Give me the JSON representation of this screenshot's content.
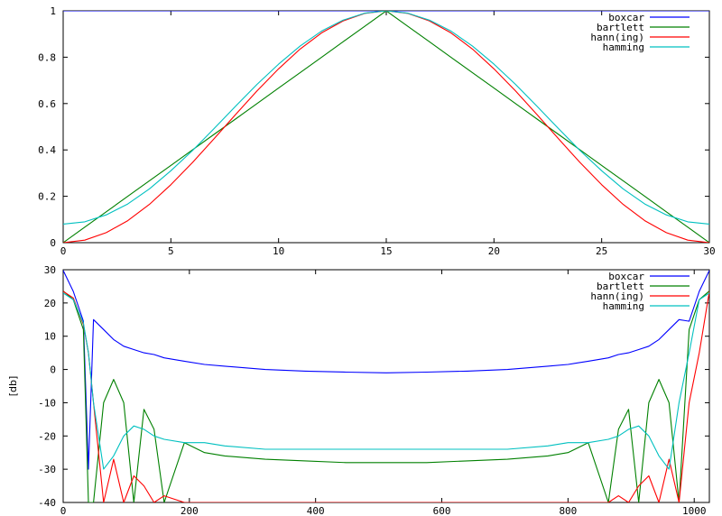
{
  "chart_data": [
    {
      "type": "line",
      "title": "",
      "xlabel": "",
      "ylabel": "",
      "xlim": [
        0,
        30
      ],
      "ylim": [
        0,
        1
      ],
      "xticks": [
        0,
        5,
        10,
        15,
        20,
        25,
        30
      ],
      "xtick_labels": [
        "0",
        "5",
        "10",
        "15",
        "20",
        "25",
        "30"
      ],
      "yticks": [
        0,
        0.2,
        0.4,
        0.6,
        0.8,
        1
      ],
      "ytick_labels": [
        "0",
        "0.2",
        "0.4",
        "0.6",
        "0.8",
        "1"
      ],
      "grid": false,
      "legend_position": "top-right",
      "x": [
        0,
        1,
        2,
        3,
        4,
        5,
        6,
        7,
        8,
        9,
        10,
        11,
        12,
        13,
        14,
        15,
        16,
        17,
        18,
        19,
        20,
        21,
        22,
        23,
        24,
        25,
        26,
        27,
        28,
        29,
        30
      ],
      "series": [
        {
          "name": "boxcar",
          "color": "#0000ff",
          "values": [
            1,
            1,
            1,
            1,
            1,
            1,
            1,
            1,
            1,
            1,
            1,
            1,
            1,
            1,
            1,
            1,
            1,
            1,
            1,
            1,
            1,
            1,
            1,
            1,
            1,
            1,
            1,
            1,
            1,
            1,
            1
          ]
        },
        {
          "name": "bartlett",
          "color": "#008000",
          "values": [
            0,
            0.067,
            0.133,
            0.2,
            0.267,
            0.333,
            0.4,
            0.467,
            0.533,
            0.6,
            0.667,
            0.733,
            0.8,
            0.867,
            0.933,
            1,
            0.933,
            0.867,
            0.8,
            0.733,
            0.667,
            0.6,
            0.533,
            0.467,
            0.4,
            0.333,
            0.267,
            0.2,
            0.133,
            0.067,
            0
          ]
        },
        {
          "name": "hann(ing)",
          "color": "#ff0000",
          "values": [
            0,
            0.011,
            0.043,
            0.095,
            0.165,
            0.25,
            0.345,
            0.448,
            0.552,
            0.655,
            0.75,
            0.835,
            0.905,
            0.957,
            0.989,
            1,
            0.989,
            0.957,
            0.905,
            0.835,
            0.75,
            0.655,
            0.552,
            0.448,
            0.345,
            0.25,
            0.165,
            0.095,
            0.043,
            0.011,
            0
          ]
        },
        {
          "name": "hamming",
          "color": "#00c0c0",
          "values": [
            0.08,
            0.09,
            0.12,
            0.167,
            0.232,
            0.31,
            0.397,
            0.492,
            0.588,
            0.683,
            0.77,
            0.848,
            0.913,
            0.96,
            0.99,
            1,
            0.99,
            0.96,
            0.913,
            0.848,
            0.77,
            0.683,
            0.588,
            0.492,
            0.397,
            0.31,
            0.232,
            0.167,
            0.12,
            0.09,
            0.08
          ]
        }
      ]
    },
    {
      "type": "line",
      "title": "",
      "xlabel": "",
      "ylabel": "[db]",
      "xlim": [
        0,
        1024
      ],
      "ylim": [
        -40,
        30
      ],
      "xticks": [
        0,
        200,
        400,
        600,
        800,
        1000
      ],
      "xtick_labels": [
        "0",
        "200",
        "400",
        "600",
        "800",
        "1000"
      ],
      "yticks": [
        -40,
        -30,
        -20,
        -10,
        0,
        10,
        20,
        30
      ],
      "ytick_labels": [
        "-40",
        "-30",
        "-20",
        "-10",
        "0",
        "10",
        "20",
        "30"
      ],
      "grid": false,
      "legend_position": "top-right",
      "x": [
        0,
        16,
        32,
        40,
        48,
        64,
        80,
        96,
        112,
        128,
        144,
        160,
        192,
        224,
        256,
        320,
        384,
        448,
        512,
        576,
        640,
        704,
        768,
        800,
        832,
        864,
        880,
        896,
        912,
        928,
        944,
        960,
        976,
        992,
        1008,
        1024
      ],
      "series": [
        {
          "name": "boxcar",
          "color": "#0000ff",
          "values": [
            29.8,
            23.5,
            14.5,
            -30,
            15,
            12,
            9,
            7,
            6,
            5,
            4.5,
            3.5,
            2.5,
            1.5,
            1,
            0,
            -0.5,
            -0.8,
            -1,
            -0.8,
            -0.5,
            0,
            1,
            1.5,
            2.5,
            3.5,
            4.5,
            5,
            6,
            7,
            9,
            12,
            15,
            14.5,
            23.5,
            29.8
          ]
        },
        {
          "name": "bartlett",
          "color": "#008000",
          "values": [
            23.6,
            21,
            12,
            -40,
            -40,
            -10,
            -3,
            -10,
            -40,
            -12,
            -18,
            -40,
            -22,
            -25,
            -26,
            -27,
            -27.5,
            -28,
            -28,
            -28,
            -27.5,
            -27,
            -26,
            -25,
            -22,
            -40,
            -18,
            -12,
            -40,
            -10,
            -3,
            -10,
            -40,
            12,
            21,
            23.6
          ]
        },
        {
          "name": "hann(ing)",
          "color": "#ff0000",
          "values": [
            23.5,
            21.5,
            13.5,
            5,
            -10,
            -40,
            -27,
            -40,
            -32,
            -35,
            -40,
            -38,
            -40,
            -40,
            -40,
            -40,
            -40,
            -40,
            -40,
            -40,
            -40,
            -40,
            -40,
            -40,
            -40,
            -40,
            -38,
            -40,
            -35,
            -32,
            -40,
            -27,
            -40,
            -10,
            5,
            23.5
          ]
        },
        {
          "name": "hamming",
          "color": "#00c0c0",
          "values": [
            23,
            21,
            14,
            5,
            -10,
            -30,
            -26,
            -20,
            -17,
            -18,
            -20,
            -21,
            -22,
            -22,
            -23,
            -24,
            -24,
            -24,
            -24,
            -24,
            -24,
            -24,
            -23,
            -22,
            -22,
            -21,
            -20,
            -18,
            -17,
            -20,
            -26,
            -30,
            -10,
            5,
            21,
            23
          ]
        }
      ]
    }
  ]
}
